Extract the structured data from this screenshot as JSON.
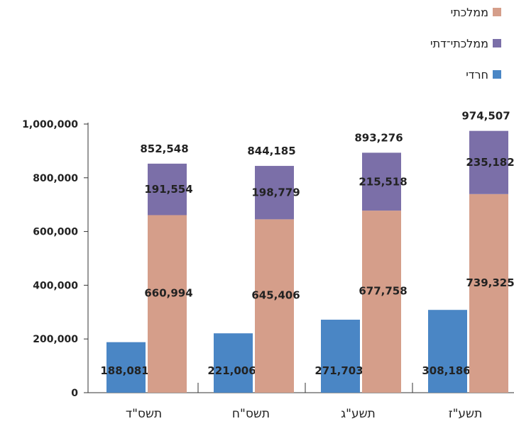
{
  "chart_data": {
    "type": "bar",
    "stacked_partial": true,
    "categories": [
      "תשס\"ד",
      "תשס\"ח",
      "תשע\"ג",
      "תשע\"ז"
    ],
    "series": [
      {
        "name": "חרדי",
        "values": [
          188081,
          221006,
          271703,
          308186
        ],
        "color": "#4a86c5",
        "stack": "a"
      },
      {
        "name": "ממלכתי",
        "values": [
          660994,
          645406,
          677758,
          739325
        ],
        "color": "#d59e8a",
        "stack": "b"
      },
      {
        "name": "ממלכתי־דתי",
        "values": [
          191554,
          198779,
          215518,
          235182
        ],
        "color": "#7b6fa8",
        "stack": "b"
      }
    ],
    "totals": [
      852548,
      844185,
      893276,
      974507
    ],
    "value_labels": {
      "haredi": [
        "188,081",
        "221,006",
        "271,703",
        "308,186"
      ],
      "mamlachti": [
        "660,994",
        "645,406",
        "677,758",
        "739,325"
      ],
      "dati": [
        "191,554",
        "198,779",
        "215,518",
        "235,182"
      ],
      "totals": [
        "852,548",
        "844,185",
        "893,276",
        "974,507"
      ]
    },
    "y_ticks": [
      0,
      200000,
      400000,
      600000,
      800000,
      1000000
    ],
    "y_tick_labels": [
      "0",
      "200,000",
      "400,000",
      "600,000",
      "800,000",
      "1,000,000"
    ],
    "ylim": [
      0,
      1000000
    ],
    "legend_order": [
      "ממלכתי",
      "ממלכתי־דתי",
      "חרדי"
    ],
    "legend_colors": [
      "#d59e8a",
      "#7b6fa8",
      "#4a86c5"
    ],
    "legend_position": "top-right",
    "grid": false
  }
}
